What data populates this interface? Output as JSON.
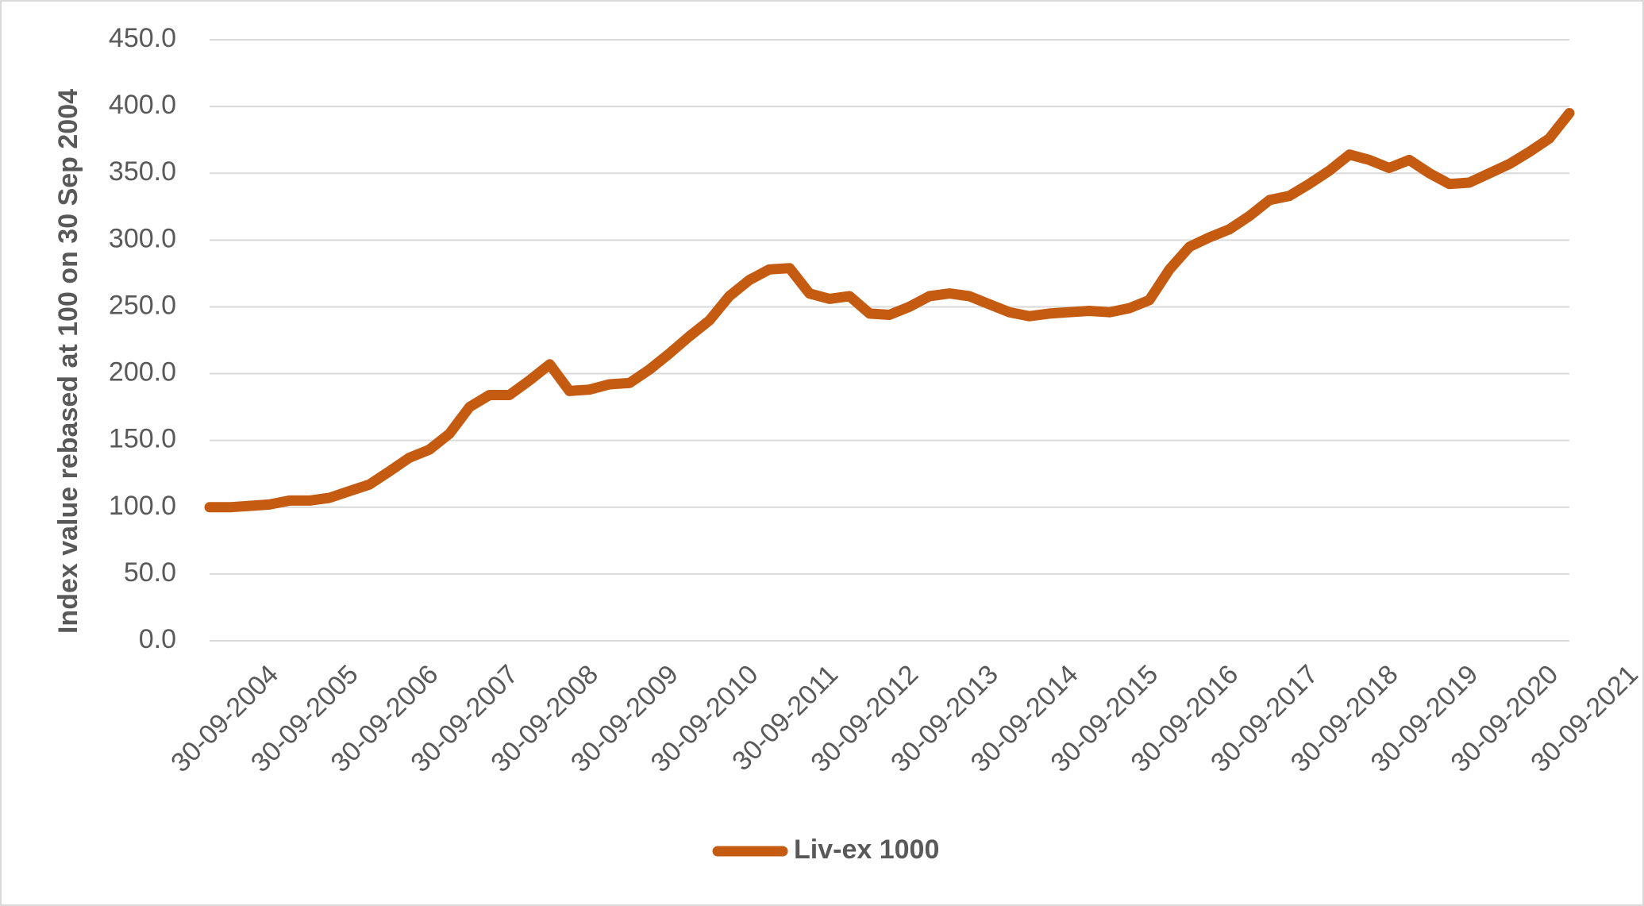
{
  "chart_data": {
    "type": "line",
    "y_label": "Index value rebased at 100 on 30 Sep 2004",
    "x": [
      "2004-09-30",
      "2004-12-31",
      "2005-03-31",
      "2005-06-30",
      "2005-09-30",
      "2005-12-31",
      "2006-03-31",
      "2006-06-30",
      "2006-09-30",
      "2006-12-31",
      "2007-03-31",
      "2007-06-30",
      "2007-09-30",
      "2007-12-31",
      "2008-03-31",
      "2008-06-30",
      "2008-09-30",
      "2008-12-31",
      "2009-03-31",
      "2009-06-30",
      "2009-09-30",
      "2009-12-31",
      "2010-03-31",
      "2010-06-30",
      "2010-09-30",
      "2010-12-31",
      "2011-03-31",
      "2011-06-30",
      "2011-09-30",
      "2011-12-31",
      "2012-03-31",
      "2012-06-30",
      "2012-09-30",
      "2012-12-31",
      "2013-03-31",
      "2013-06-30",
      "2013-09-30",
      "2013-12-31",
      "2014-03-31",
      "2014-06-30",
      "2014-09-30",
      "2014-12-31",
      "2015-03-31",
      "2015-06-30",
      "2015-09-30",
      "2015-12-31",
      "2016-03-31",
      "2016-06-30",
      "2016-09-30",
      "2016-12-31",
      "2017-03-31",
      "2017-06-30",
      "2017-09-30",
      "2017-12-31",
      "2018-03-31",
      "2018-06-30",
      "2018-09-30",
      "2018-12-31",
      "2019-03-31",
      "2019-06-30",
      "2019-09-30",
      "2019-12-31",
      "2020-03-31",
      "2020-06-30",
      "2020-09-30",
      "2020-12-31",
      "2021-03-31",
      "2021-06-30",
      "2021-09-30"
    ],
    "series": [
      {
        "name": "Liv-ex 1000",
        "color": "#c55a11",
        "values": [
          100,
          100,
          101,
          102,
          105,
          105,
          107,
          112,
          117,
          127,
          137,
          143,
          155,
          175,
          184,
          184,
          195,
          207,
          187,
          188,
          192,
          193,
          203,
          215,
          228,
          240,
          258,
          270,
          278,
          279,
          260,
          256,
          258,
          245,
          244,
          250,
          258,
          260,
          258,
          252,
          246,
          243,
          245,
          246,
          247,
          246,
          249,
          255,
          278,
          295,
          302,
          308,
          318,
          330,
          333,
          342,
          352,
          364,
          360,
          354,
          360,
          350,
          342,
          343,
          350,
          357,
          366,
          376,
          395
        ]
      }
    ],
    "xlim": [
      "2004-09-30",
      "2021-09-30"
    ],
    "xticks": [
      {
        "value": "2004-09-30",
        "label": "30-09-2004"
      },
      {
        "value": "2005-09-30",
        "label": "30-09-2005"
      },
      {
        "value": "2006-09-30",
        "label": "30-09-2006"
      },
      {
        "value": "2007-09-30",
        "label": "30-09-2007"
      },
      {
        "value": "2008-09-30",
        "label": "30-09-2008"
      },
      {
        "value": "2009-09-30",
        "label": "30-09-2009"
      },
      {
        "value": "2010-09-30",
        "label": "30-09-2010"
      },
      {
        "value": "2011-09-30",
        "label": "30-09-2011"
      },
      {
        "value": "2012-09-30",
        "label": "30-09-2012"
      },
      {
        "value": "2013-09-30",
        "label": "30-09-2013"
      },
      {
        "value": "2014-09-30",
        "label": "30-09-2014"
      },
      {
        "value": "2015-09-30",
        "label": "30-09-2015"
      },
      {
        "value": "2016-09-30",
        "label": "30-09-2016"
      },
      {
        "value": "2017-09-30",
        "label": "30-09-2017"
      },
      {
        "value": "2018-09-30",
        "label": "30-09-2018"
      },
      {
        "value": "2019-09-30",
        "label": "30-09-2019"
      },
      {
        "value": "2020-09-30",
        "label": "30-09-2020"
      },
      {
        "value": "2021-09-30",
        "label": "30-09-2021"
      }
    ],
    "ylim": [
      0,
      450
    ],
    "yticks": [
      {
        "value": 0,
        "label": "0.0"
      },
      {
        "value": 50,
        "label": "50.0"
      },
      {
        "value": 100,
        "label": "100.0"
      },
      {
        "value": 150,
        "label": "150.0"
      },
      {
        "value": 200,
        "label": "200.0"
      },
      {
        "value": 250,
        "label": "250.0"
      },
      {
        "value": 300,
        "label": "300.0"
      },
      {
        "value": 350,
        "label": "350.0"
      },
      {
        "value": 400,
        "label": "400.0"
      },
      {
        "value": 450,
        "label": "450.0"
      }
    ],
    "grid": true,
    "legend": "bottom"
  }
}
